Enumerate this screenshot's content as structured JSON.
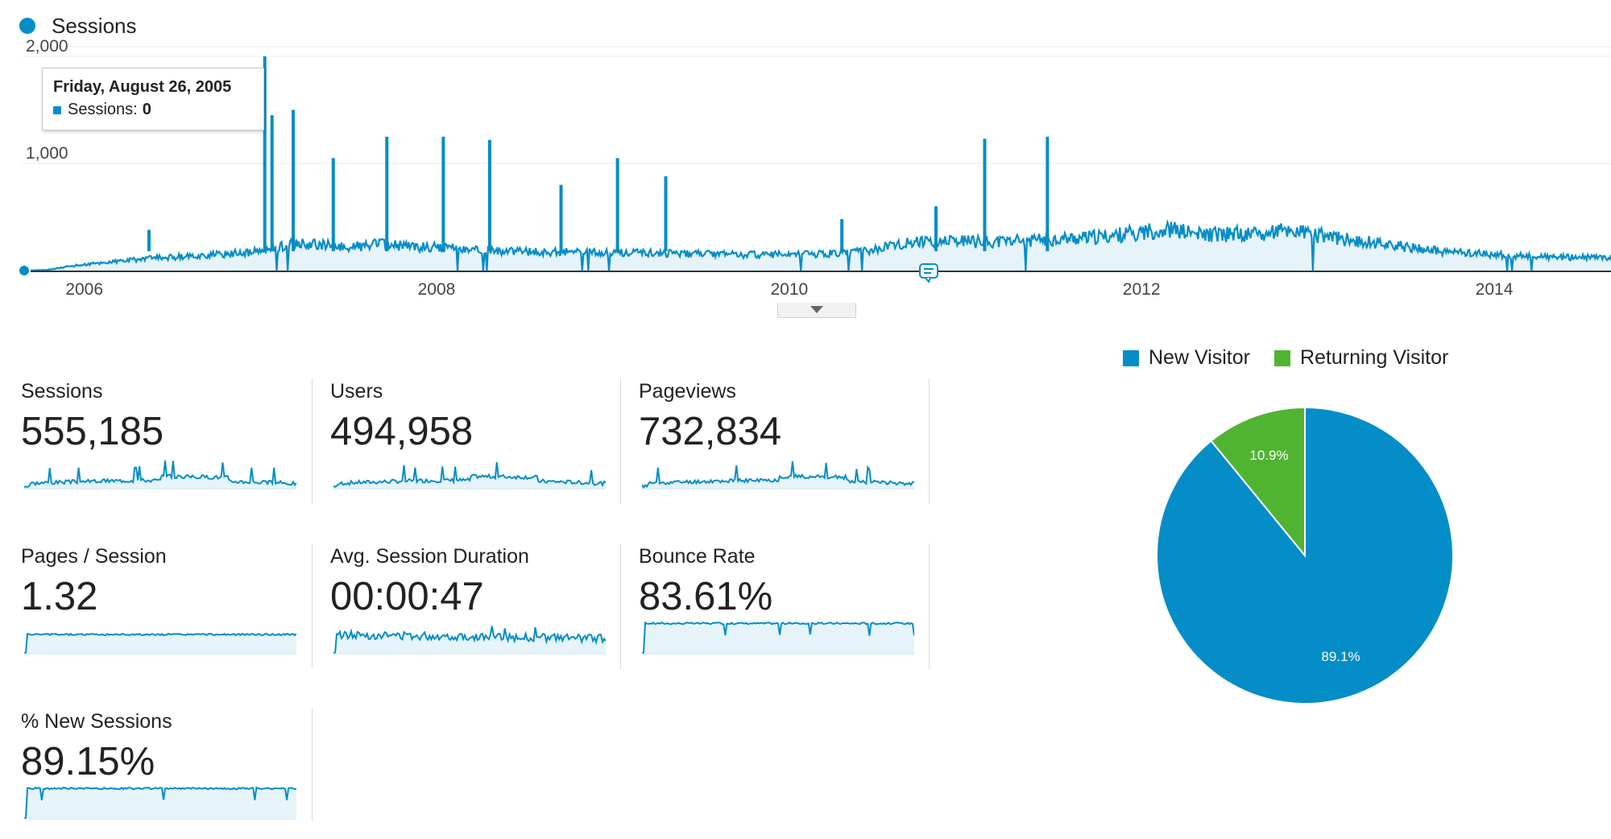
{
  "legend": {
    "label": "Sessions",
    "color": "#058dc7"
  },
  "tooltip": {
    "date": "Friday, August 26, 2005",
    "metric_label": "Sessions:",
    "metric_value": "0"
  },
  "colors": {
    "series": "#058dc7",
    "area": "#e6f4fa",
    "grid": "#e8e8e8",
    "returning": "#50b432"
  },
  "icons": {
    "collapse": "chevron-down-icon",
    "annotation": "annotation-icon"
  },
  "chart_data": [
    {
      "type": "area",
      "title": "",
      "series": [
        {
          "name": "Sessions"
        }
      ],
      "y_ticks": [
        "2,000",
        "1,000"
      ],
      "x_ticks": [
        "2006",
        "2008",
        "2010",
        "2012",
        "2014"
      ],
      "x_range": [
        "2005-08-26",
        "2014-08-31"
      ],
      "ylim": [
        0,
        2000
      ],
      "grid": true,
      "points": [
        [
          "2005-08-26",
          0
        ],
        [
          "2005-10-15",
          5
        ],
        [
          "2005-12-01",
          40
        ],
        [
          "2006-02-01",
          70
        ],
        [
          "2006-04-01",
          95
        ],
        [
          "2006-06-01",
          120
        ],
        [
          "2006-08-01",
          130
        ],
        [
          "2006-10-01",
          150
        ],
        [
          "2006-12-01",
          165
        ],
        [
          "2007-01-15",
          190
        ],
        [
          "2007-03-01",
          250
        ],
        [
          "2007-05-01",
          240
        ],
        [
          "2007-07-01",
          220
        ],
        [
          "2007-09-01",
          245
        ],
        [
          "2007-11-01",
          230
        ],
        [
          "2008-01-01",
          215
        ],
        [
          "2008-03-01",
          200
        ],
        [
          "2008-05-01",
          185
        ],
        [
          "2008-07-01",
          175
        ],
        [
          "2008-09-01",
          175
        ],
        [
          "2008-11-01",
          170
        ],
        [
          "2009-01-01",
          170
        ],
        [
          "2009-03-01",
          165
        ],
        [
          "2009-05-01",
          160
        ],
        [
          "2009-07-01",
          155
        ],
        [
          "2009-09-01",
          150
        ],
        [
          "2009-11-01",
          150
        ],
        [
          "2010-01-01",
          150
        ],
        [
          "2010-03-01",
          155
        ],
        [
          "2010-05-01",
          165
        ],
        [
          "2010-07-01",
          200
        ],
        [
          "2010-09-01",
          255
        ],
        [
          "2010-11-01",
          265
        ],
        [
          "2011-01-01",
          270
        ],
        [
          "2011-03-01",
          265
        ],
        [
          "2011-05-01",
          280
        ],
        [
          "2011-07-01",
          290
        ],
        [
          "2011-09-01",
          300
        ],
        [
          "2011-11-01",
          320
        ],
        [
          "2012-01-01",
          360
        ],
        [
          "2012-03-01",
          380
        ],
        [
          "2012-05-01",
          330
        ],
        [
          "2012-07-01",
          340
        ],
        [
          "2012-09-01",
          350
        ],
        [
          "2012-11-01",
          370
        ],
        [
          "2013-01-01",
          330
        ],
        [
          "2013-03-01",
          290
        ],
        [
          "2013-05-01",
          260
        ],
        [
          "2013-07-01",
          220
        ],
        [
          "2013-09-01",
          185
        ],
        [
          "2013-11-01",
          165
        ],
        [
          "2014-01-01",
          150
        ],
        [
          "2014-03-01",
          135
        ],
        [
          "2014-05-01",
          125
        ],
        [
          "2014-08-31",
          120
        ]
      ],
      "spikes": [
        [
          "2006-05-15",
          380
        ],
        [
          "2007-01-10",
          2000
        ],
        [
          "2007-01-25",
          1450
        ],
        [
          "2007-03-10",
          1500
        ],
        [
          "2007-06-01",
          1050
        ],
        [
          "2007-09-20",
          1250
        ],
        [
          "2008-01-15",
          1250
        ],
        [
          "2008-04-20",
          1220
        ],
        [
          "2008-09-15",
          800
        ],
        [
          "2009-01-10",
          1050
        ],
        [
          "2009-04-20",
          880
        ],
        [
          "2010-04-20",
          480
        ],
        [
          "2010-11-01",
          600
        ],
        [
          "2011-02-10",
          1230
        ],
        [
          "2011-06-20",
          1250
        ]
      ]
    },
    {
      "type": "line",
      "title": "Sessions",
      "series": [
        {
          "name": "Sessions"
        }
      ]
    },
    {
      "type": "line",
      "title": "Users",
      "series": [
        {
          "name": "Users"
        }
      ]
    },
    {
      "type": "line",
      "title": "Pageviews",
      "series": [
        {
          "name": "Pageviews"
        }
      ]
    },
    {
      "type": "line",
      "title": "Pages / Session",
      "series": [
        {
          "name": "Pages / Session"
        }
      ]
    },
    {
      "type": "line",
      "title": "Avg. Session Duration",
      "series": [
        {
          "name": "Avg. Session Duration"
        }
      ]
    },
    {
      "type": "line",
      "title": "Bounce Rate",
      "series": [
        {
          "name": "Bounce Rate"
        }
      ]
    },
    {
      "type": "line",
      "title": "% New Sessions",
      "series": [
        {
          "name": "% New Sessions"
        }
      ]
    },
    {
      "type": "pie",
      "title": "",
      "legend_position": "top",
      "slices": [
        {
          "name": "New Visitor",
          "value": 89.1,
          "label": "89.1%",
          "color": "#058dc7"
        },
        {
          "name": "Returning Visitor",
          "value": 10.9,
          "label": "10.9%",
          "color": "#50b432"
        }
      ]
    }
  ],
  "metrics": [
    {
      "label": "Sessions",
      "value": "555,185",
      "shape": "traffic",
      "level": 0.15,
      "seed": 3
    },
    {
      "label": "Users",
      "value": "494,958",
      "shape": "traffic",
      "level": 0.15,
      "seed": 7
    },
    {
      "label": "Pageviews",
      "value": "732,834",
      "shape": "traffic",
      "level": 0.15,
      "seed": 11
    },
    {
      "label": "Pages / Session",
      "value": "1.32",
      "shape": "flat",
      "level": 0.55,
      "seed": 5
    },
    {
      "label": "Avg. Session Duration",
      "value": "00:00:47",
      "shape": "noisy",
      "level": 0.55,
      "seed": 13
    },
    {
      "label": "Bounce Rate",
      "value": "83.61%",
      "shape": "flat",
      "level": 0.88,
      "seed": 17
    },
    {
      "label": "% New Sessions",
      "value": "89.15%",
      "shape": "flat",
      "level": 0.88,
      "seed": 19
    }
  ]
}
